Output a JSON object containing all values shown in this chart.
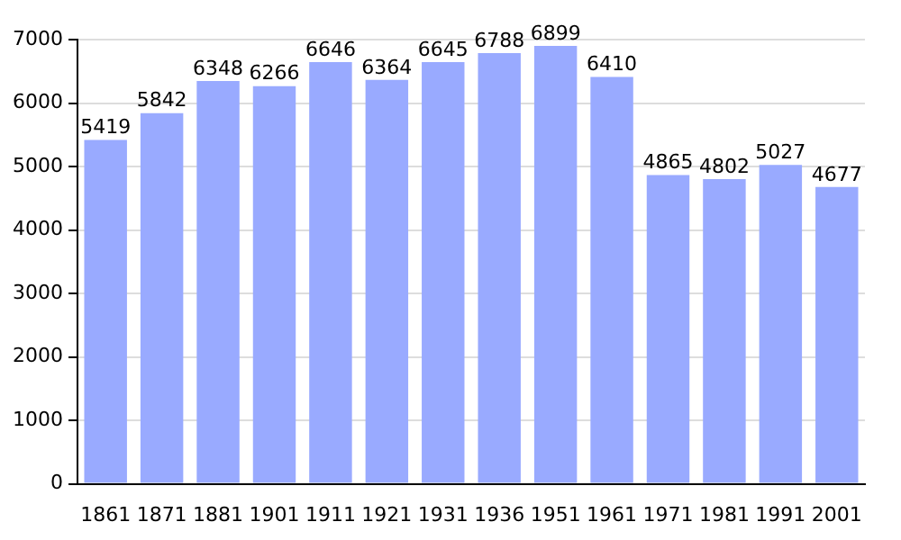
{
  "chart_data": {
    "type": "bar",
    "categories": [
      "1861",
      "1871",
      "1881",
      "1901",
      "1911",
      "1921",
      "1931",
      "1936",
      "1951",
      "1961",
      "1971",
      "1981",
      "1991",
      "2001"
    ],
    "values": [
      5419,
      5842,
      6348,
      6266,
      6646,
      6364,
      6645,
      6788,
      6899,
      6410,
      4865,
      4802,
      5027,
      4677
    ],
    "color": "#99aaff",
    "ylim": [
      0,
      7000
    ],
    "yticks": [
      0,
      1000,
      2000,
      3000,
      4000,
      5000,
      6000,
      7000
    ],
    "grid": "y",
    "data_labels": true
  }
}
